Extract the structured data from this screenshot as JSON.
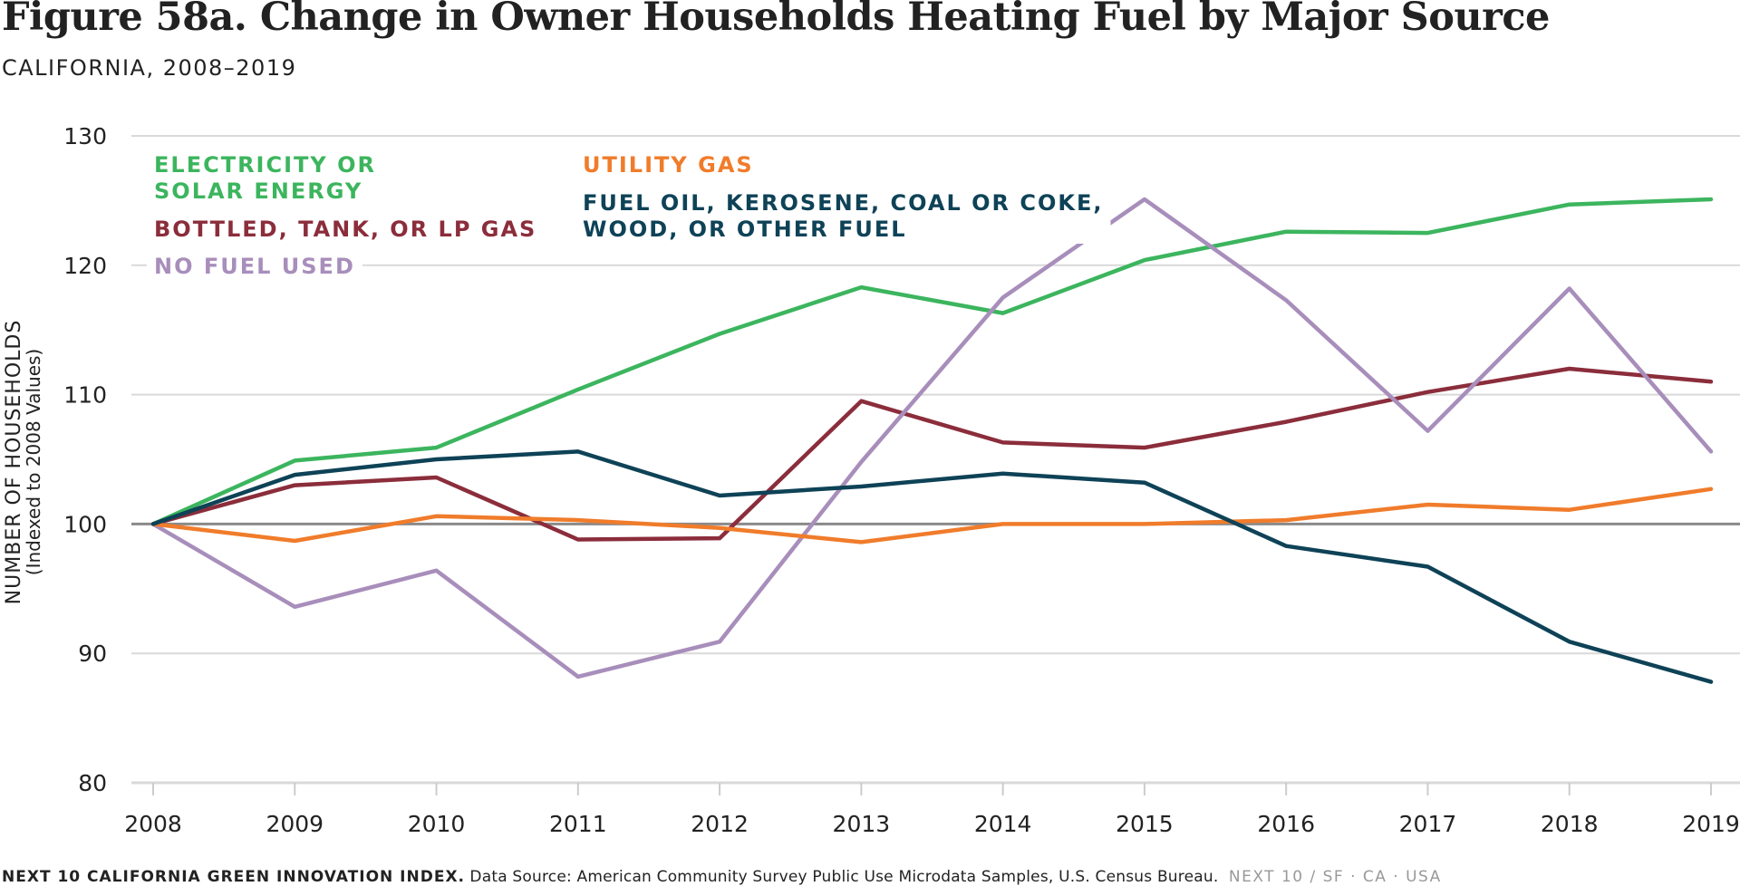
{
  "title": "Figure 58a. Change in Owner Households Heating Fuel by Major Source",
  "subtitle": "CALIFORNIA, 2008–2019",
  "footer": {
    "brand": "NEXT 10 CALIFORNIA GREEN INNOVATION INDEX.",
    "source": "Data Source: American Community Survey Public Use Microdata Samples, U.S. Census Bureau.",
    "tag": "NEXT 10  /  SF · CA · USA"
  },
  "chart_data": {
    "type": "line",
    "ylabel": "NUMBER OF HOUSEHOLDS",
    "ylabel_sub": "(Indexed to 2008 Values)",
    "xlabel": "",
    "x": [
      2008,
      2009,
      2010,
      2011,
      2012,
      2013,
      2014,
      2015,
      2016,
      2017,
      2018,
      2019
    ],
    "ylim": [
      80,
      130
    ],
    "yticks": [
      80,
      90,
      100,
      110,
      120,
      130
    ],
    "grid": true,
    "baseline": 100,
    "legend_placement": "top-left",
    "series": [
      {
        "name": "ELECTRICITY OR SOLAR ENERGY",
        "label_lines": [
          "ELECTRICITY OR",
          "SOLAR ENERGY"
        ],
        "color": "#3cb55e",
        "values": [
          100,
          104.9,
          105.9,
          110.4,
          114.7,
          118.3,
          116.3,
          120.4,
          122.6,
          122.5,
          124.7,
          125.1
        ]
      },
      {
        "name": "BOTTLED, TANK, OR LP GAS",
        "label_lines": [
          "BOTTLED, TANK, OR LP GAS"
        ],
        "color": "#8b2d3b",
        "values": [
          100,
          103,
          103.6,
          98.8,
          98.9,
          109.5,
          106.3,
          105.9,
          107.9,
          110.2,
          112,
          111
        ]
      },
      {
        "name": "NO FUEL USED",
        "label_lines": [
          "NO FUEL USED"
        ],
        "color": "#a88ebb",
        "values": [
          100,
          93.6,
          96.4,
          88.2,
          90.9,
          104.8,
          117.5,
          125.1,
          117.3,
          107.2,
          118.2,
          105.6
        ]
      },
      {
        "name": "UTILITY GAS",
        "label_lines": [
          "UTILITY GAS"
        ],
        "color": "#f07c2b",
        "values": [
          100,
          98.7,
          100.6,
          100.3,
          99.7,
          98.6,
          100,
          100,
          100.3,
          101.5,
          101.1,
          102.7
        ]
      },
      {
        "name": "FUEL OIL, KEROSENE, COAL OR COKE, WOOD, OR OTHER FUEL",
        "label_lines": [
          "FUEL OIL, KEROSENE, COAL OR COKE,",
          "WOOD, OR OTHER FUEL"
        ],
        "color": "#0e4257",
        "values": [
          100,
          103.8,
          105,
          105.6,
          102.2,
          102.9,
          103.9,
          103.2,
          98.3,
          96.7,
          90.9,
          87.8
        ]
      }
    ]
  }
}
